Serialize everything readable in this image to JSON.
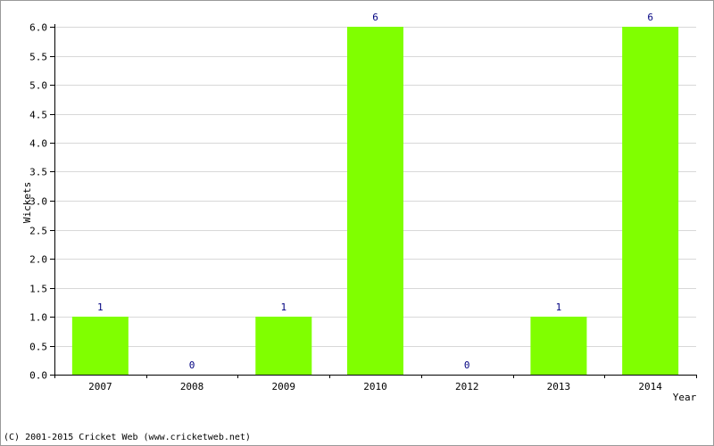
{
  "chart_data": {
    "type": "bar",
    "categories": [
      "2007",
      "2008",
      "2009",
      "2010",
      "2012",
      "2013",
      "2014"
    ],
    "values": [
      1,
      0,
      1,
      6,
      0,
      1,
      6
    ],
    "data_labels": [
      "1",
      "0",
      "1",
      "6",
      "0",
      "1",
      "6"
    ],
    "xlabel": "Year",
    "ylabel": "Wickets",
    "ylim": [
      0,
      6
    ],
    "yticks": [
      "0.0",
      "0.5",
      "1.0",
      "1.5",
      "2.0",
      "2.5",
      "3.0",
      "3.5",
      "4.0",
      "4.5",
      "5.0",
      "5.5",
      "6.0"
    ],
    "grid": true,
    "colors": {
      "bar": "#80ff00",
      "data_label": "#000080",
      "grid": "#d8d8d8",
      "axis": "#000000"
    }
  },
  "footer": {
    "copyright": "(C) 2001-2015 Cricket Web (www.cricketweb.net)"
  }
}
